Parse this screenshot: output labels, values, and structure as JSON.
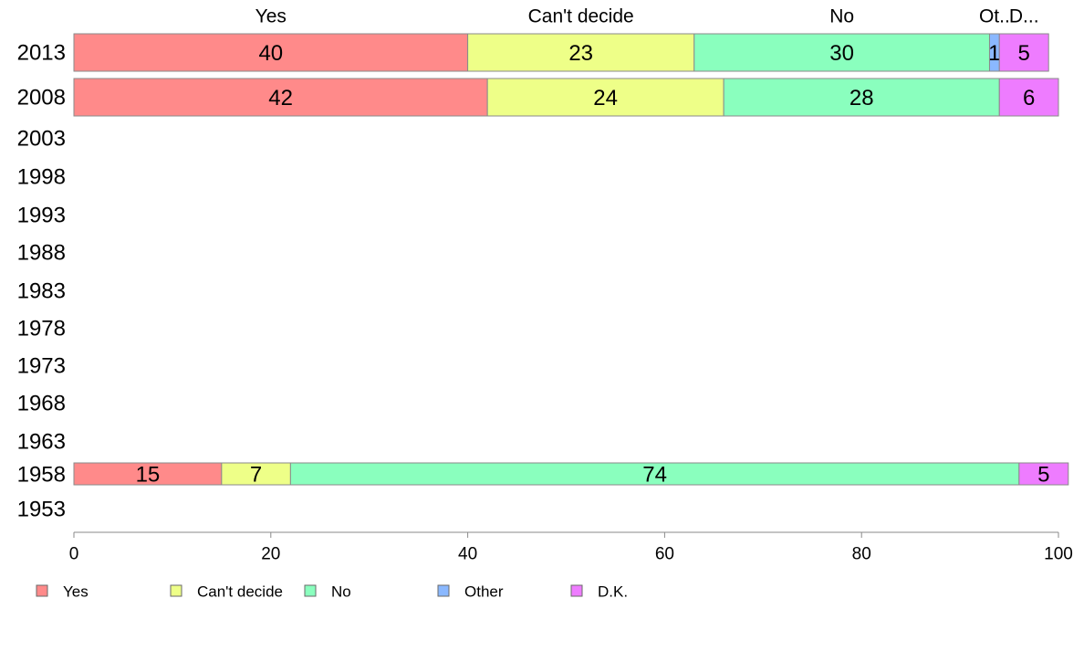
{
  "chart_data": {
    "type": "bar",
    "orientation": "horizontal",
    "stacked": true,
    "title": "",
    "xlabel": "",
    "ylabel": "",
    "xlim": [
      0,
      100
    ],
    "x_ticks": [
      "0",
      "20",
      "40",
      "60",
      "80",
      "100"
    ],
    "categories": [
      "2013",
      "2008",
      "2003",
      "1998",
      "1993",
      "1988",
      "1983",
      "1978",
      "1973",
      "1968",
      "1963",
      "1958",
      "1953"
    ],
    "series": [
      {
        "name": "Yes",
        "color": "#FF8A8A",
        "values": [
          40,
          42,
          null,
          null,
          null,
          null,
          null,
          null,
          null,
          null,
          null,
          15,
          null
        ]
      },
      {
        "name": "Can't decide",
        "color": "#EEFF88",
        "values": [
          23,
          24,
          null,
          null,
          null,
          null,
          null,
          null,
          null,
          null,
          null,
          7,
          null
        ]
      },
      {
        "name": "No",
        "color": "#8AFFBE",
        "values": [
          30,
          28,
          null,
          null,
          null,
          null,
          null,
          null,
          null,
          null,
          null,
          74,
          null
        ]
      },
      {
        "name": "Other",
        "color": "#8AB8FF",
        "values": [
          1,
          0,
          null,
          null,
          null,
          null,
          null,
          null,
          null,
          null,
          null,
          0,
          null
        ]
      },
      {
        "name": "D.K.",
        "color": "#EE7CFF",
        "values": [
          5,
          6,
          null,
          null,
          null,
          null,
          null,
          null,
          null,
          null,
          null,
          5,
          null
        ]
      }
    ],
    "top_labels": [
      "Yes",
      "Can't decide",
      "No",
      "Ot..",
      "D..."
    ],
    "grid": false,
    "legend_position": "bottom-left"
  }
}
